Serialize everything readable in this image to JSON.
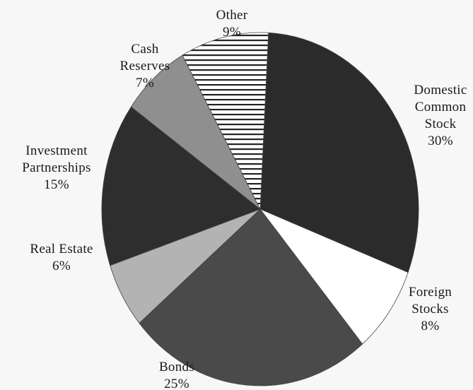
{
  "chart_data": {
    "type": "pie",
    "title": "",
    "start_angle_deg": 3,
    "slices": [
      {
        "label": "Domestic Common Stock",
        "lines": [
          "Domestic",
          "Common",
          "Stock"
        ],
        "value": 30,
        "value_text": "30%",
        "color": "#2b2b2b",
        "pattern": "solid"
      },
      {
        "label": "Foreign Stocks",
        "lines": [
          "Foreign",
          "Stocks"
        ],
        "value": 8,
        "value_text": "8%",
        "color": "#ffffff",
        "pattern": "solid"
      },
      {
        "label": "Bonds",
        "lines": [
          "Bonds"
        ],
        "value": 25,
        "value_text": "25%",
        "color": "#4a4a4a",
        "pattern": "solid"
      },
      {
        "label": "Real Estate",
        "lines": [
          "Real Estate"
        ],
        "value": 6,
        "value_text": "6%",
        "color": "#b3b3b3",
        "pattern": "solid"
      },
      {
        "label": "Investment Partnerships",
        "lines": [
          "Investment",
          "Partnerships"
        ],
        "value": 15,
        "value_text": "15%",
        "color": "#2e2e2e",
        "pattern": "solid"
      },
      {
        "label": "Cash Reserves",
        "lines": [
          "Cash",
          "Reserves"
        ],
        "value": 7,
        "value_text": "7%",
        "color": "#8f8f8f",
        "pattern": "solid"
      },
      {
        "label": "Other",
        "lines": [
          "Other"
        ],
        "value": 9,
        "value_text": "9%",
        "color": "#ffffff",
        "pattern": "horizontal-stripes"
      }
    ]
  }
}
